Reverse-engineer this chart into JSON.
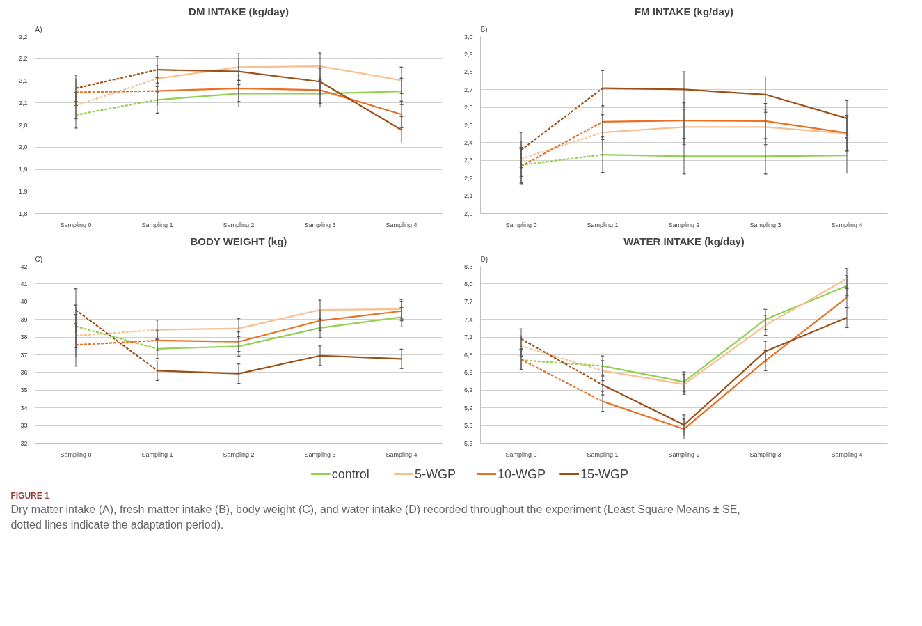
{
  "chart_data": [
    {
      "type": "line",
      "title": "DM INTAKE (kg/day)",
      "annotations": [
        "A)"
      ],
      "categories": [
        "Sampling 0",
        "Sampling 1",
        "Sampling 2",
        "Sampling 3",
        "Sampling 4"
      ],
      "grid": "y",
      "marker": "none",
      "legend": "bottom",
      "ylim": [
        1.8,
        2.2
      ],
      "yticks": [
        {
          "value": 1.8,
          "label": "1,8"
        },
        {
          "value": 1.85,
          "label": "1,9"
        },
        {
          "value": 1.9,
          "label": "1,9"
        },
        {
          "value": 1.95,
          "label": "2,0"
        },
        {
          "value": 2.0,
          "label": "2,0"
        },
        {
          "value": 2.05,
          "label": "2,1"
        },
        {
          "value": 2.1,
          "label": "2,1"
        },
        {
          "value": 2.15,
          "label": "2,2"
        },
        {
          "value": 2.2,
          "label": "2,2"
        }
      ],
      "series": [
        {
          "color": "#92d050",
          "line_style": "dashed",
          "values": [
            2.023,
            2.057,
            null,
            null,
            null
          ],
          "errors": [
            0.03,
            null,
            null,
            null,
            null
          ]
        },
        {
          "color": "#f9c08f",
          "line_style": "dashed",
          "values": [
            2.044,
            2.105,
            null,
            null,
            null
          ],
          "errors": [
            0.03,
            null,
            null,
            null,
            null
          ]
        },
        {
          "color": "#ea7024",
          "line_style": "dashed",
          "values": [
            2.074,
            2.077,
            null,
            null,
            null
          ],
          "errors": [
            0.03,
            null,
            null,
            null,
            null
          ]
        },
        {
          "color": "#9e4f16",
          "line_style": "dashed",
          "values": [
            2.083,
            2.125,
            null,
            null,
            null
          ],
          "errors": [
            0.03,
            null,
            null,
            null,
            null
          ]
        },
        {
          "name": "control",
          "color": "#92d050",
          "line_style": "solid",
          "values": [
            null,
            2.057,
            2.071,
            2.071,
            2.076
          ],
          "errors": [
            null,
            0.03,
            0.03,
            0.03,
            0.03
          ]
        },
        {
          "name": "5-WGP",
          "color": "#f9c08f",
          "line_style": "solid",
          "values": [
            null,
            2.105,
            2.131,
            2.133,
            2.101
          ],
          "errors": [
            null,
            0.03,
            0.03,
            0.03,
            0.03
          ]
        },
        {
          "name": "10-WGP",
          "color": "#ea7024",
          "line_style": "solid",
          "values": [
            null,
            2.077,
            2.083,
            2.079,
            2.024
          ],
          "errors": [
            null,
            0.03,
            0.03,
            0.03,
            0.03
          ]
        },
        {
          "name": "15-WGP",
          "color": "#9e4f16",
          "line_style": "solid",
          "values": [
            null,
            2.125,
            2.121,
            2.098,
            1.989
          ],
          "errors": [
            null,
            0.03,
            0.03,
            0.03,
            0.03
          ]
        }
      ]
    },
    {
      "type": "line",
      "title": "FM INTAKE (kg/day)",
      "annotations": [
        "B)"
      ],
      "categories": [
        "Sampling 0",
        "Sampling 1",
        "Sampling 2",
        "Sampling 3",
        "Sampling 4"
      ],
      "grid": "y",
      "marker": "none",
      "legend": "bottom",
      "ylim": [
        2.0,
        3.0
      ],
      "yticks": [
        {
          "value": 2.0,
          "label": "2,0"
        },
        {
          "value": 2.1,
          "label": "2,1"
        },
        {
          "value": 2.2,
          "label": "2,2"
        },
        {
          "value": 2.3,
          "label": "2,3"
        },
        {
          "value": 2.4,
          "label": "2,4"
        },
        {
          "value": 2.5,
          "label": "2,5"
        },
        {
          "value": 2.6,
          "label": "2,6"
        },
        {
          "value": 2.7,
          "label": "2,7"
        },
        {
          "value": 2.8,
          "label": "2,8"
        },
        {
          "value": 2.9,
          "label": "2,9"
        },
        {
          "value": 3.0,
          "label": "3,0"
        }
      ],
      "series": [
        {
          "color": "#92d050",
          "line_style": "dashed",
          "values": [
            2.274,
            2.332,
            null,
            null,
            null
          ],
          "errors": [
            0.1,
            null,
            null,
            null,
            null
          ]
        },
        {
          "color": "#f9c08f",
          "line_style": "dashed",
          "values": [
            2.309,
            2.458,
            null,
            null,
            null
          ],
          "errors": [
            0.1,
            null,
            null,
            null,
            null
          ]
        },
        {
          "color": "#ea7024",
          "line_style": "dashed",
          "values": [
            2.268,
            2.518,
            null,
            null,
            null
          ],
          "errors": [
            0.1,
            null,
            null,
            null,
            null
          ]
        },
        {
          "color": "#9e4f16",
          "line_style": "dashed",
          "values": [
            2.359,
            2.708,
            null,
            null,
            null
          ],
          "errors": [
            0.1,
            null,
            null,
            null,
            null
          ]
        },
        {
          "name": "control",
          "color": "#92d050",
          "line_style": "solid",
          "values": [
            null,
            2.332,
            2.323,
            2.323,
            2.328
          ],
          "errors": [
            null,
            0.1,
            0.1,
            0.1,
            0.1
          ]
        },
        {
          "name": "5-WGP",
          "color": "#f9c08f",
          "line_style": "solid",
          "values": [
            null,
            2.458,
            2.489,
            2.489,
            2.452
          ],
          "errors": [
            null,
            0.1,
            0.1,
            0.1,
            0.1
          ]
        },
        {
          "name": "10-WGP",
          "color": "#ea7024",
          "line_style": "solid",
          "values": [
            null,
            2.518,
            2.525,
            2.522,
            2.455
          ],
          "errors": [
            null,
            0.1,
            0.1,
            0.1,
            0.1
          ]
        },
        {
          "name": "15-WGP",
          "color": "#9e4f16",
          "line_style": "solid",
          "values": [
            null,
            2.708,
            2.701,
            2.672,
            2.538
          ],
          "errors": [
            null,
            0.1,
            0.1,
            0.1,
            0.1
          ]
        }
      ]
    },
    {
      "type": "line",
      "title": "BODY WEIGHT (kg)",
      "annotations": [
        "C)"
      ],
      "categories": [
        "Sampling 0",
        "Sampling 1",
        "Sampling 2",
        "Sampling 3",
        "Sampling 4"
      ],
      "grid": "y",
      "marker": "none",
      "legend": "bottom",
      "ylim": [
        32,
        42
      ],
      "yticks": [
        32,
        33,
        34,
        35,
        36,
        37,
        38,
        39,
        40,
        41,
        42
      ],
      "series": [
        {
          "color": "#92d050",
          "line_style": "dashed",
          "values": [
            38.61,
            37.34,
            null,
            null,
            null
          ],
          "errors": [
            1.2,
            null,
            null,
            null,
            null
          ]
        },
        {
          "color": "#f9c08f",
          "line_style": "dashed",
          "values": [
            38.08,
            38.41,
            null,
            null,
            null
          ],
          "errors": [
            1.2,
            null,
            null,
            null,
            null
          ]
        },
        {
          "color": "#ea7024",
          "line_style": "dashed",
          "values": [
            37.56,
            37.81,
            null,
            null,
            null
          ],
          "errors": [
            1.2,
            null,
            null,
            null,
            null
          ]
        },
        {
          "color": "#9e4f16",
          "line_style": "dashed",
          "values": [
            39.53,
            36.1,
            null,
            null,
            null
          ],
          "errors": [
            1.2,
            null,
            null,
            null,
            null
          ]
        },
        {
          "name": "control",
          "color": "#92d050",
          "line_style": "solid",
          "values": [
            null,
            37.34,
            37.48,
            38.52,
            39.13
          ],
          "errors": [
            null,
            0.55,
            0.55,
            0.55,
            0.55
          ]
        },
        {
          "name": "5-WGP",
          "color": "#f9c08f",
          "line_style": "solid",
          "values": [
            null,
            38.41,
            38.49,
            39.54,
            39.58
          ],
          "errors": [
            null,
            0.55,
            0.55,
            0.55,
            0.55
          ]
        },
        {
          "name": "10-WGP",
          "color": "#ea7024",
          "line_style": "solid",
          "values": [
            null,
            37.81,
            37.74,
            38.93,
            39.47
          ],
          "errors": [
            null,
            0.55,
            0.55,
            0.55,
            0.55
          ]
        },
        {
          "name": "15-WGP",
          "color": "#9e4f16",
          "line_style": "solid",
          "values": [
            null,
            36.1,
            35.93,
            36.95,
            36.77
          ],
          "errors": [
            null,
            0.55,
            0.55,
            0.55,
            0.55
          ]
        }
      ]
    },
    {
      "type": "line",
      "title": "WATER INTAKE (kg/day)",
      "annotations": [
        "D)",
        "FIGURE 1",
        "Dry matter intake (A), fresh matter intake (B), body weight (C), and water intake (D) recorded throughout the experiment (Least Square Means ± SE, dotted lines indicate the adaptation period)."
      ],
      "categories": [
        "Sampling 0",
        "Sampling 1",
        "Sampling 2",
        "Sampling 3",
        "Sampling 4"
      ],
      "grid": "y",
      "marker": "none",
      "legend": "bottom",
      "ylim": [
        5.3,
        8.3
      ],
      "yticks": [
        {
          "value": 5.3,
          "label": "5,3"
        },
        {
          "value": 5.6,
          "label": "5,6"
        },
        {
          "value": 5.9,
          "label": "5,9"
        },
        {
          "value": 6.2,
          "label": "6,2"
        },
        {
          "value": 6.5,
          "label": "6,5"
        },
        {
          "value": 6.8,
          "label": "6,8"
        },
        {
          "value": 7.1,
          "label": "7,1"
        },
        {
          "value": 7.4,
          "label": "7,4"
        },
        {
          "value": 7.7,
          "label": "7,7"
        },
        {
          "value": 8.0,
          "label": "8,0"
        },
        {
          "value": 8.3,
          "label": "8,3"
        }
      ],
      "series": [
        {
          "color": "#92d050",
          "line_style": "dashed",
          "values": [
            6.71,
            6.61,
            null,
            null,
            null
          ],
          "errors": [
            0.17,
            null,
            null,
            null,
            null
          ]
        },
        {
          "color": "#f9c08f",
          "line_style": "dashed",
          "values": [
            6.95,
            6.53,
            null,
            null,
            null
          ],
          "errors": [
            0.17,
            null,
            null,
            null,
            null
          ]
        },
        {
          "color": "#ea7024",
          "line_style": "dashed",
          "values": [
            6.72,
            6.01,
            null,
            null,
            null
          ],
          "errors": [
            0.17,
            null,
            null,
            null,
            null
          ]
        },
        {
          "color": "#9e4f16",
          "line_style": "dashed",
          "values": [
            7.07,
            6.29,
            null,
            null,
            null
          ],
          "errors": [
            0.17,
            null,
            null,
            null,
            null
          ]
        },
        {
          "name": "control",
          "color": "#92d050",
          "line_style": "solid",
          "values": [
            null,
            6.61,
            6.34,
            7.4,
            7.97
          ],
          "errors": [
            null,
            0.17,
            0.17,
            0.17,
            0.17
          ]
        },
        {
          "name": "5-WGP",
          "color": "#f9c08f",
          "line_style": "solid",
          "values": [
            null,
            6.53,
            6.3,
            7.3,
            8.09
          ],
          "errors": [
            null,
            0.17,
            0.17,
            0.17,
            0.17
          ]
        },
        {
          "name": "10-WGP",
          "color": "#ea7024",
          "line_style": "solid",
          "values": [
            null,
            6.01,
            5.54,
            6.7,
            7.77
          ],
          "errors": [
            null,
            0.17,
            0.17,
            0.17,
            0.17
          ]
        },
        {
          "name": "15-WGP",
          "color": "#9e4f16",
          "line_style": "solid",
          "values": [
            null,
            6.29,
            5.61,
            6.86,
            7.43
          ],
          "errors": [
            null,
            0.17,
            0.17,
            0.17,
            0.17
          ]
        }
      ]
    }
  ]
}
